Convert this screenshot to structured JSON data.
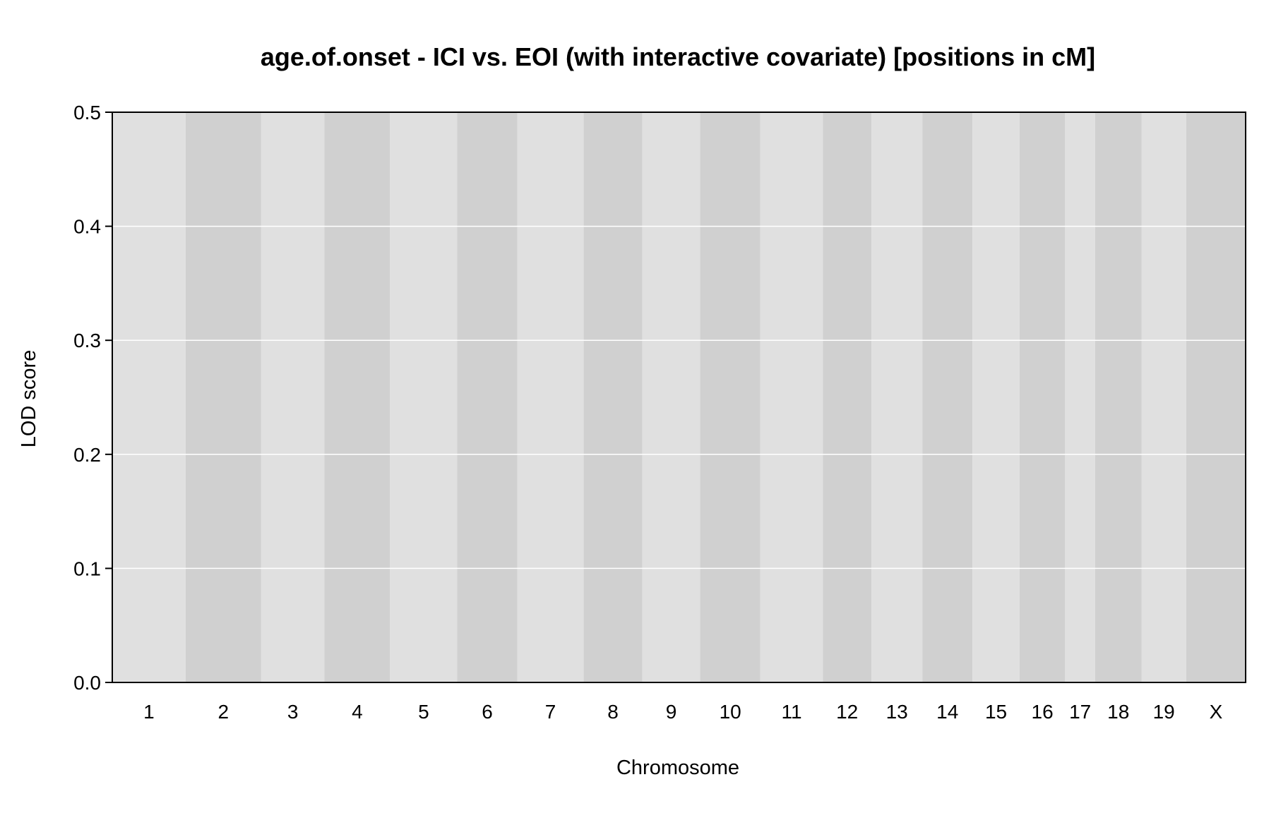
{
  "chart_data": {
    "type": "line",
    "title": "age.of.onset - ICI vs. EOI (with interactive covariate) [positions in cM]",
    "xlabel": "Chromosome",
    "ylabel": "LOD score",
    "ylim": [
      0,
      0.5
    ],
    "y_ticks": [
      "0.0",
      "0.1",
      "0.2",
      "0.3",
      "0.4",
      "0.5"
    ],
    "grid": true,
    "legend": "none",
    "colors": {
      "band_light": "#e0e0e0",
      "band_dark": "#d0d0d0",
      "gridline": "#ffffff",
      "series": "#1a1a6e",
      "frame": "#000000"
    },
    "chromosomes": [
      {
        "label": "1",
        "length": 95
      },
      {
        "label": "2",
        "length": 98
      },
      {
        "label": "3",
        "length": 82
      },
      {
        "label": "4",
        "length": 85
      },
      {
        "label": "5",
        "length": 87
      },
      {
        "label": "6",
        "length": 78
      },
      {
        "label": "7",
        "length": 86
      },
      {
        "label": "8",
        "length": 76
      },
      {
        "label": "9",
        "length": 75
      },
      {
        "label": "10",
        "length": 78
      },
      {
        "label": "11",
        "length": 81
      },
      {
        "label": "12",
        "length": 63
      },
      {
        "label": "13",
        "length": 66
      },
      {
        "label": "14",
        "length": 65
      },
      {
        "label": "15",
        "length": 61
      },
      {
        "label": "16",
        "length": 59
      },
      {
        "label": "17",
        "length": 39
      },
      {
        "label": "18",
        "length": 60
      },
      {
        "label": "19",
        "length": 58
      },
      {
        "label": "X",
        "length": 77
      }
    ],
    "series": [
      {
        "lod_values": "all chromosomes flat at 0.0",
        "value": 0.0
      }
    ]
  }
}
